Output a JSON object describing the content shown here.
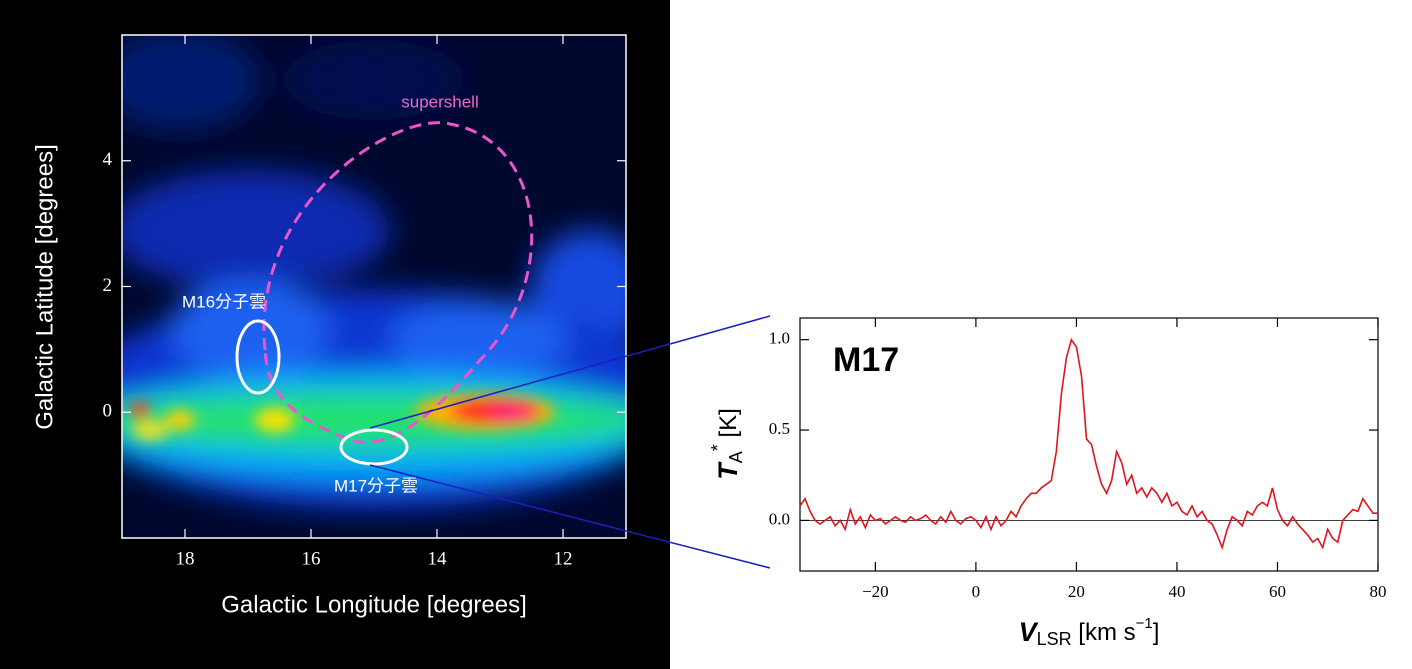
{
  "chart_data": [
    {
      "type": "image",
      "xlabel": "Galactic Longitude  [degrees]",
      "ylabel": "Galactic Latitude  [degrees]",
      "xlim": [
        19,
        11
      ],
      "xticks": [
        18,
        16,
        14,
        12
      ],
      "ylim": [
        -2,
        6
      ],
      "yticks": [
        0,
        2,
        4
      ],
      "annotations": [
        "supershell",
        "M16分子雲",
        "M17分子雲"
      ]
    },
    {
      "type": "line",
      "title": "M17",
      "xlabel": {
        "symbol": "V",
        "sub": "LSR",
        "unit": " [km s",
        "sup": "−1",
        "close": "]"
      },
      "ylabel": {
        "symbol": "T",
        "sub": "A",
        "sup": "*",
        "unit": " [K]"
      },
      "xlim": [
        -35,
        80
      ],
      "xticks": [
        {
          "value": -20,
          "label": "−20"
        },
        0,
        20,
        40,
        60,
        80
      ],
      "ylim": [
        -0.28,
        1.12
      ],
      "yticks": [
        {
          "value": 0,
          "label": "0.0"
        },
        0.5,
        {
          "value": 1,
          "label": "1.0"
        }
      ],
      "series": [
        {
          "color": "#e0141e",
          "x": [
            -35,
            -34,
            -33,
            -32,
            -31,
            -30,
            -29,
            -28,
            -27,
            -26,
            -25,
            -24,
            -23,
            -22,
            -21,
            -20,
            -19,
            -18,
            -17,
            -16,
            -15,
            -14,
            -13,
            -12,
            -11,
            -10,
            -9,
            -8,
            -7,
            -6,
            -5,
            -4,
            -3,
            -2,
            -1,
            0,
            1,
            2,
            3,
            4,
            5,
            6,
            7,
            8,
            9,
            10,
            11,
            12,
            13,
            14,
            15,
            16,
            17,
            18,
            19,
            20,
            21,
            22,
            23,
            24,
            25,
            26,
            27,
            28,
            29,
            30,
            31,
            32,
            33,
            34,
            35,
            36,
            37,
            38,
            39,
            40,
            41,
            42,
            43,
            44,
            45,
            46,
            47,
            48,
            49,
            50,
            51,
            52,
            53,
            54,
            55,
            56,
            57,
            58,
            59,
            60,
            61,
            62,
            63,
            64,
            65,
            66,
            67,
            68,
            69,
            70,
            71,
            72,
            73,
            74,
            75,
            76,
            77,
            78,
            79,
            80
          ],
          "values": [
            0.08,
            0.12,
            0.05,
            0.0,
            -0.02,
            0.0,
            0.02,
            -0.03,
            0.0,
            -0.05,
            0.06,
            -0.02,
            0.02,
            -0.04,
            0.03,
            0.0,
            0.01,
            -0.02,
            0.0,
            0.02,
            0.0,
            -0.01,
            0.02,
            0.0,
            0.01,
            0.03,
            0.0,
            -0.02,
            0.02,
            -0.01,
            0.05,
            0.0,
            -0.02,
            0.01,
            0.02,
            0.0,
            -0.04,
            0.02,
            -0.05,
            0.02,
            -0.03,
            0.0,
            0.05,
            0.02,
            0.08,
            0.12,
            0.15,
            0.15,
            0.18,
            0.2,
            0.22,
            0.38,
            0.7,
            0.9,
            1.0,
            0.96,
            0.8,
            0.45,
            0.42,
            0.3,
            0.2,
            0.15,
            0.22,
            0.38,
            0.32,
            0.2,
            0.25,
            0.15,
            0.18,
            0.13,
            0.18,
            0.15,
            0.1,
            0.15,
            0.08,
            0.1,
            0.05,
            0.03,
            0.08,
            0.02,
            0.05,
            0.0,
            -0.02,
            -0.08,
            -0.15,
            -0.05,
            0.02,
            0.0,
            -0.03,
            0.05,
            0.03,
            0.08,
            0.1,
            0.08,
            0.18,
            0.06,
            0.0,
            -0.03,
            0.02,
            -0.02,
            -0.05,
            -0.08,
            -0.12,
            -0.1,
            -0.15,
            -0.05,
            -0.1,
            -0.12,
            0.0,
            0.03,
            0.06,
            0.05,
            0.12,
            0.08,
            0.04,
            0.04
          ]
        }
      ]
    }
  ]
}
